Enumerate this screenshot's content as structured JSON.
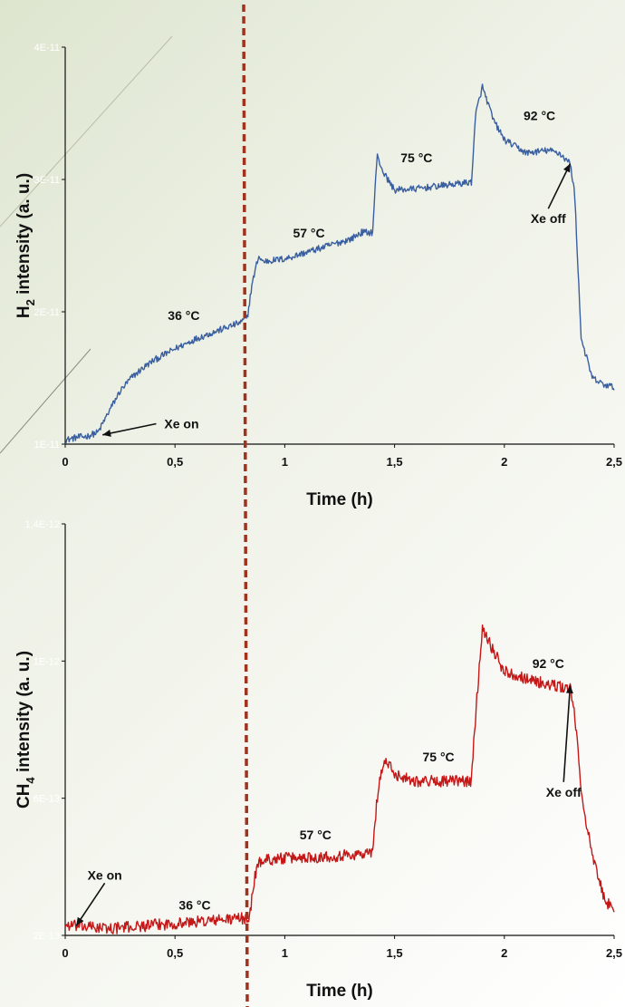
{
  "chart_data": [
    {
      "type": "line",
      "xlabel": "Time (h)",
      "ylabel_main": "H",
      "ylabel_sub": "2",
      "ylabel_rest": " intensity (a. u.)",
      "xlim": [
        0,
        2.5
      ],
      "ylim": [
        1e-11,
        4e-11
      ],
      "xticks": [
        0,
        0.5,
        1,
        1.5,
        2,
        2.5
      ],
      "xtick_labels": [
        "0",
        "0,5",
        "1",
        "1,5",
        "2",
        "2,5"
      ],
      "yticks": [
        1e-11,
        2e-11,
        3e-11,
        4e-11
      ],
      "ytick_labels": [
        "1E-11",
        "2E-11",
        "3E-11",
        "4E-11"
      ],
      "grid": false,
      "series": [
        {
          "color": "#3a5fa0",
          "x": [
            0,
            0.05,
            0.1,
            0.15,
            0.2,
            0.25,
            0.3,
            0.35,
            0.4,
            0.5,
            0.6,
            0.7,
            0.8,
            0.83,
            0.85,
            0.88,
            0.9,
            1.0,
            1.1,
            1.2,
            1.3,
            1.35,
            1.4,
            1.42,
            1.45,
            1.5,
            1.6,
            1.7,
            1.8,
            1.85,
            1.87,
            1.9,
            1.95,
            2.0,
            2.05,
            2.1,
            2.2,
            2.25,
            2.3,
            2.32,
            2.35,
            2.4,
            2.45,
            2.5
          ],
          "y": [
            1.03e-11,
            1.05e-11,
            1.06e-11,
            1.09e-11,
            1.25e-11,
            1.4e-11,
            1.5e-11,
            1.57e-11,
            1.63e-11,
            1.72e-11,
            1.8e-11,
            1.86e-11,
            1.92e-11,
            1.96e-11,
            2.2e-11,
            2.42e-11,
            2.38e-11,
            2.4e-11,
            2.45e-11,
            2.5e-11,
            2.55e-11,
            2.6e-11,
            2.6e-11,
            3.18e-11,
            3.05e-11,
            2.92e-11,
            2.93e-11,
            2.95e-11,
            2.97e-11,
            2.98e-11,
            3.5e-11,
            3.7e-11,
            3.45e-11,
            3.3e-11,
            3.25e-11,
            3.2e-11,
            3.22e-11,
            3.2e-11,
            3.12e-11,
            2.9e-11,
            1.8e-11,
            1.5e-11,
            1.45e-11,
            1.43e-11
          ],
          "noise": 2.5e-13
        }
      ],
      "annotations": [
        {
          "text": "36 °C",
          "x": 0.54,
          "y": 1.94e-11
        },
        {
          "text": "57 °C",
          "x": 1.11,
          "y": 2.56e-11
        },
        {
          "text": "75 °C",
          "x": 1.6,
          "y": 3.13e-11
        },
        {
          "text": "92 °C",
          "x": 2.16,
          "y": 3.45e-11
        },
        {
          "text": "Xe off",
          "x": 2.2,
          "y": 2.67e-11,
          "arrow_to": [
            2.3,
            3.12e-11
          ]
        },
        {
          "text": "Xe on",
          "x": 0.53,
          "y": 1.12e-11,
          "arrow_to": [
            0.17,
            1.07e-11
          ]
        }
      ]
    },
    {
      "type": "line",
      "xlabel": "Time (h)",
      "ylabel_main": "CH",
      "ylabel_sub": "4",
      "ylabel_rest": " intensity (a. u.)",
      "xlim": [
        0,
        2.5
      ],
      "ylim": [
        2e-13,
        1.4e-12
      ],
      "xticks": [
        0,
        0.5,
        1,
        1.5,
        2,
        2.5
      ],
      "xtick_labels": [
        "0",
        "0,5",
        "1",
        "1,5",
        "2",
        "2,5"
      ],
      "yticks": [
        2e-13,
        6e-13,
        1e-12,
        1.4e-12
      ],
      "ytick_labels": [
        "2E-13",
        "6E-13",
        "1E-12",
        "1,4E-12"
      ],
      "grid": false,
      "series": [
        {
          "color": "#c41717",
          "x": [
            0,
            0.2,
            0.4,
            0.6,
            0.8,
            0.84,
            0.86,
            0.88,
            0.9,
            1.0,
            1.2,
            1.4,
            1.42,
            1.44,
            1.46,
            1.5,
            1.6,
            1.7,
            1.8,
            1.85,
            1.87,
            1.9,
            1.95,
            2.0,
            2.1,
            2.2,
            2.3,
            2.32,
            2.35,
            2.4,
            2.45,
            2.5
          ],
          "y": [
            2.3e-13,
            2.2e-13,
            2.3e-13,
            2.4e-13,
            2.5e-13,
            2.5e-13,
            3.6e-13,
            4.1e-13,
            4.2e-13,
            4.25e-13,
            4.3e-13,
            4.4e-13,
            6e-13,
            6.8e-13,
            7.1e-13,
            6.7e-13,
            6.5e-13,
            6.5e-13,
            6.5e-13,
            6.5e-13,
            8.5e-13,
            1.1e-12,
            1.03e-12,
            9.7e-13,
            9.5e-13,
            9.3e-13,
            9.2e-13,
            8.5e-13,
            6.2e-13,
            4.3e-13,
            3.2e-13,
            2.6e-13
          ],
          "noise": 1.7e-14
        }
      ],
      "annotations": [
        {
          "text": "36 °C",
          "x": 0.59,
          "y": 2.75e-13
        },
        {
          "text": "57 °C",
          "x": 1.14,
          "y": 4.8e-13
        },
        {
          "text": "75 °C",
          "x": 1.7,
          "y": 7.08e-13
        },
        {
          "text": "92 °C",
          "x": 2.2,
          "y": 9.8e-13
        },
        {
          "text": "Xe off",
          "x": 2.27,
          "y": 6.05e-13,
          "arrow_to": [
            2.3,
            9.3e-13
          ]
        },
        {
          "text": "Xe on",
          "x": 0.18,
          "y": 3.63e-13,
          "arrow_to": [
            0.05,
            2.28e-13
          ]
        }
      ]
    }
  ]
}
